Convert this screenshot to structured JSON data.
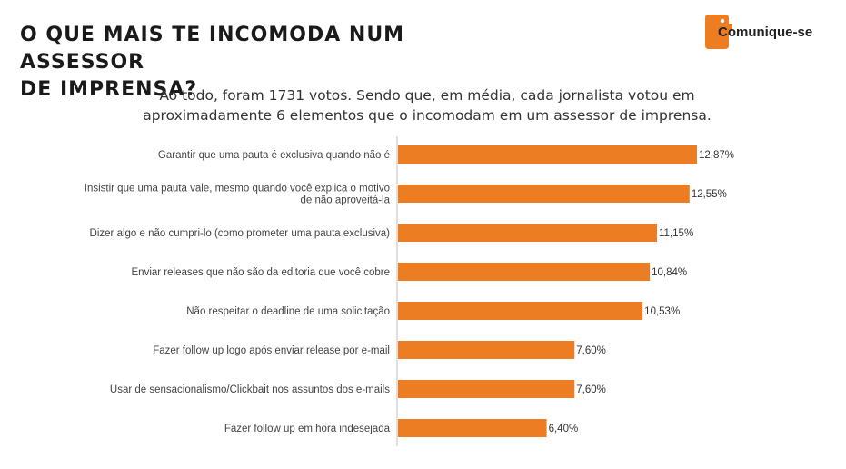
{
  "header": {
    "title_line1": "O QUE MAIS TE INCOMODA NUM ASSESSOR",
    "title_line2": "DE IMPRENSA?",
    "subtitle_line1": "Ao todo, foram 1731 votos. Sendo que, em média, cada jornalista votou em",
    "subtitle_line2": "aproximadamente 6 elementos que o incomodam em um assessor de imprensa."
  },
  "logo": {
    "text": "Comunique-se",
    "color": "#ee7d22"
  },
  "colors": {
    "bar": "#ed7d22",
    "axis": "#bfbfbf"
  },
  "chart_data": {
    "type": "bar",
    "orientation": "horizontal",
    "categories": [
      [
        "Garantir que uma pauta é exclusiva quando não é"
      ],
      [
        "Insistir que uma pauta vale, mesmo quando você explica o motivo",
        "de não aproveitá-la"
      ],
      [
        "Dizer algo e não cumpri-lo (como prometer uma pauta exclusiva)"
      ],
      [
        "Enviar releases que não são da editoria que você cobre"
      ],
      [
        "Não respeitar o deadline de uma solicitação"
      ],
      [
        "Fazer follow up logo após enviar release por e-mail"
      ],
      [
        "Usar de sensacionalismo/Clickbait nos assuntos dos e-mails"
      ],
      [
        "Fazer follow up em hora indesejada"
      ]
    ],
    "values": [
      12.87,
      12.55,
      11.15,
      10.84,
      10.53,
      7.6,
      7.6,
      6.4
    ],
    "value_labels": [
      "12,87%",
      "12,55%",
      "11,15%",
      "10,84%",
      "10,53%",
      "7,60%",
      "7,60%",
      "6,40%"
    ],
    "xlim": [
      0,
      12.87
    ],
    "grid": false,
    "legend": "none"
  }
}
